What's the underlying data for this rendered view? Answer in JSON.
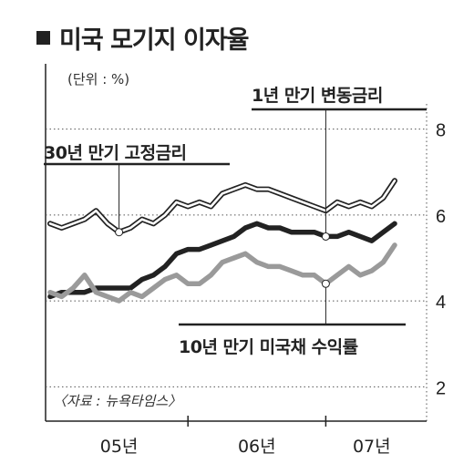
{
  "chart_data": {
    "type": "line",
    "title": "미국 모기지 이자율",
    "unit": "(단위 : %)",
    "source": "〈자료 : 뉴욕타임스〉",
    "ylim": [
      1.2,
      9
    ],
    "yticks": [
      2,
      4,
      6,
      8
    ],
    "xlim": [
      0,
      30
    ],
    "xticks": [
      {
        "x": 6,
        "label": "05년"
      },
      {
        "x": 18,
        "label": "06년"
      },
      {
        "x": 28,
        "label": "07년"
      }
    ],
    "grid": true,
    "series": [
      {
        "name": "30년 만기 고정금리",
        "style": "double",
        "color": "#222222",
        "values": [
          [
            0,
            5.8
          ],
          [
            1,
            5.7
          ],
          [
            2,
            5.8
          ],
          [
            3,
            5.9
          ],
          [
            4,
            6.1
          ],
          [
            5,
            5.8
          ],
          [
            6,
            5.6
          ],
          [
            7,
            5.7
          ],
          [
            8,
            5.9
          ],
          [
            9,
            5.8
          ],
          [
            10,
            6.0
          ],
          [
            11,
            6.3
          ],
          [
            12,
            6.2
          ],
          [
            13,
            6.3
          ],
          [
            14,
            6.2
          ],
          [
            15,
            6.5
          ],
          [
            16,
            6.6
          ],
          [
            17,
            6.7
          ],
          [
            18,
            6.6
          ],
          [
            19,
            6.6
          ],
          [
            20,
            6.5
          ],
          [
            21,
            6.4
          ],
          [
            22,
            6.3
          ],
          [
            23,
            6.2
          ],
          [
            24,
            6.1
          ],
          [
            25,
            6.3
          ],
          [
            26,
            6.2
          ],
          [
            27,
            6.3
          ],
          [
            28,
            6.2
          ],
          [
            29,
            6.4
          ],
          [
            30,
            6.8
          ]
        ]
      },
      {
        "name": "1년 만기 변동금리",
        "style": "solid-thick",
        "color": "#222222",
        "values": [
          [
            0,
            4.1
          ],
          [
            1,
            4.2
          ],
          [
            2,
            4.2
          ],
          [
            3,
            4.2
          ],
          [
            4,
            4.3
          ],
          [
            5,
            4.3
          ],
          [
            6,
            4.3
          ],
          [
            7,
            4.3
          ],
          [
            8,
            4.5
          ],
          [
            9,
            4.6
          ],
          [
            10,
            4.8
          ],
          [
            11,
            5.1
          ],
          [
            12,
            5.2
          ],
          [
            13,
            5.2
          ],
          [
            14,
            5.3
          ],
          [
            15,
            5.4
          ],
          [
            16,
            5.5
          ],
          [
            17,
            5.7
          ],
          [
            18,
            5.8
          ],
          [
            19,
            5.7
          ],
          [
            20,
            5.7
          ],
          [
            21,
            5.6
          ],
          [
            22,
            5.6
          ],
          [
            23,
            5.6
          ],
          [
            24,
            5.5
          ],
          [
            25,
            5.5
          ],
          [
            26,
            5.6
          ],
          [
            27,
            5.5
          ],
          [
            28,
            5.4
          ],
          [
            29,
            5.6
          ],
          [
            30,
            5.8
          ]
        ]
      },
      {
        "name": "10년 만기 미국채 수익률",
        "style": "solid-gray",
        "color": "#9a9a9a",
        "values": [
          [
            0,
            4.2
          ],
          [
            1,
            4.1
          ],
          [
            2,
            4.3
          ],
          [
            3,
            4.6
          ],
          [
            4,
            4.2
          ],
          [
            5,
            4.1
          ],
          [
            6,
            4.0
          ],
          [
            7,
            4.2
          ],
          [
            8,
            4.1
          ],
          [
            9,
            4.3
          ],
          [
            10,
            4.5
          ],
          [
            11,
            4.6
          ],
          [
            12,
            4.4
          ],
          [
            13,
            4.4
          ],
          [
            14,
            4.6
          ],
          [
            15,
            4.9
          ],
          [
            16,
            5.0
          ],
          [
            17,
            5.1
          ],
          [
            18,
            4.9
          ],
          [
            19,
            4.8
          ],
          [
            20,
            4.8
          ],
          [
            21,
            4.7
          ],
          [
            22,
            4.6
          ],
          [
            23,
            4.6
          ],
          [
            24,
            4.4
          ],
          [
            25,
            4.6
          ],
          [
            26,
            4.8
          ],
          [
            27,
            4.6
          ],
          [
            28,
            4.7
          ],
          [
            29,
            4.9
          ],
          [
            30,
            5.3
          ]
        ]
      }
    ],
    "annotations": [
      {
        "text": "30년 만기 고정금리",
        "series": 0,
        "point_x": 6
      },
      {
        "text": "1년 만기 변동금리",
        "series": 1,
        "point_x": 24
      },
      {
        "text": "10년 만기 미국채 수익률",
        "series": 2,
        "point_x": 24
      }
    ]
  }
}
